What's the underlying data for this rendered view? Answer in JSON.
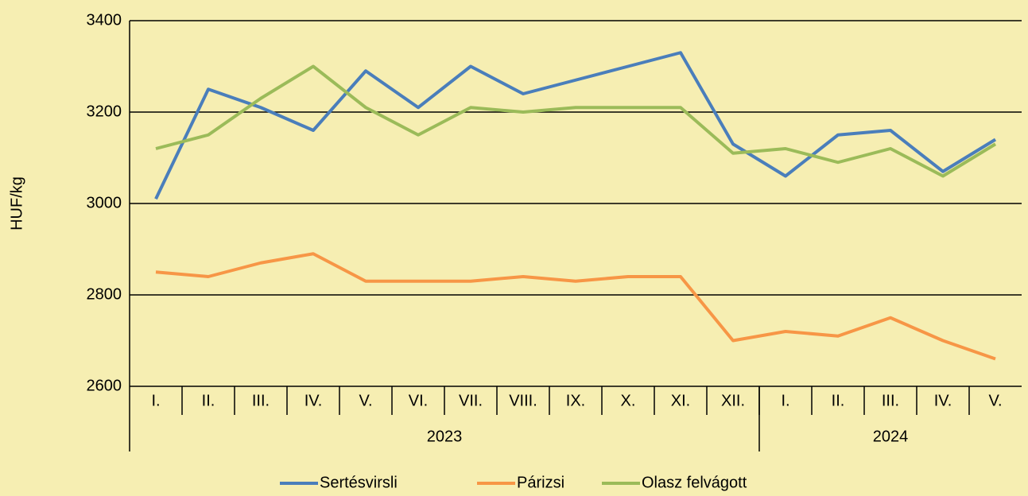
{
  "chart_data": {
    "type": "line",
    "y_label": "HUF/kg",
    "categories": [
      "I.",
      "II.",
      "III.",
      "IV.",
      "V.",
      "VI.",
      "VII.",
      "VIII.",
      "IX.",
      "X.",
      "XI.",
      "XII.",
      "I.",
      "II.",
      "III.",
      "IV.",
      "V."
    ],
    "x_groups": [
      {
        "label": "2023",
        "span": 12
      },
      {
        "label": "2024",
        "span": 5
      }
    ],
    "series": [
      {
        "name": "Sertésvirsli",
        "color": "#4a7ebb",
        "values": [
          3010,
          3250,
          3210,
          3160,
          3290,
          3210,
          3300,
          3240,
          3270,
          3300,
          3330,
          3130,
          3060,
          3150,
          3160,
          3070,
          3140
        ]
      },
      {
        "name": "Párizsi",
        "color": "#f79646",
        "values": [
          2850,
          2840,
          2870,
          2890,
          2830,
          2830,
          2830,
          2840,
          2830,
          2840,
          2840,
          2700,
          2720,
          2710,
          2750,
          2700,
          2660
        ]
      },
      {
        "name": "Olasz felvágott",
        "color": "#9bbb59",
        "values": [
          3120,
          3150,
          3230,
          3300,
          3210,
          3150,
          3210,
          3200,
          3210,
          3210,
          3210,
          3110,
          3120,
          3090,
          3120,
          3060,
          3130
        ]
      }
    ],
    "ylim": [
      2600,
      3400
    ],
    "yticks": [
      2600,
      2800,
      3000,
      3200,
      3400
    ],
    "grid": true,
    "legend": "bottom"
  }
}
